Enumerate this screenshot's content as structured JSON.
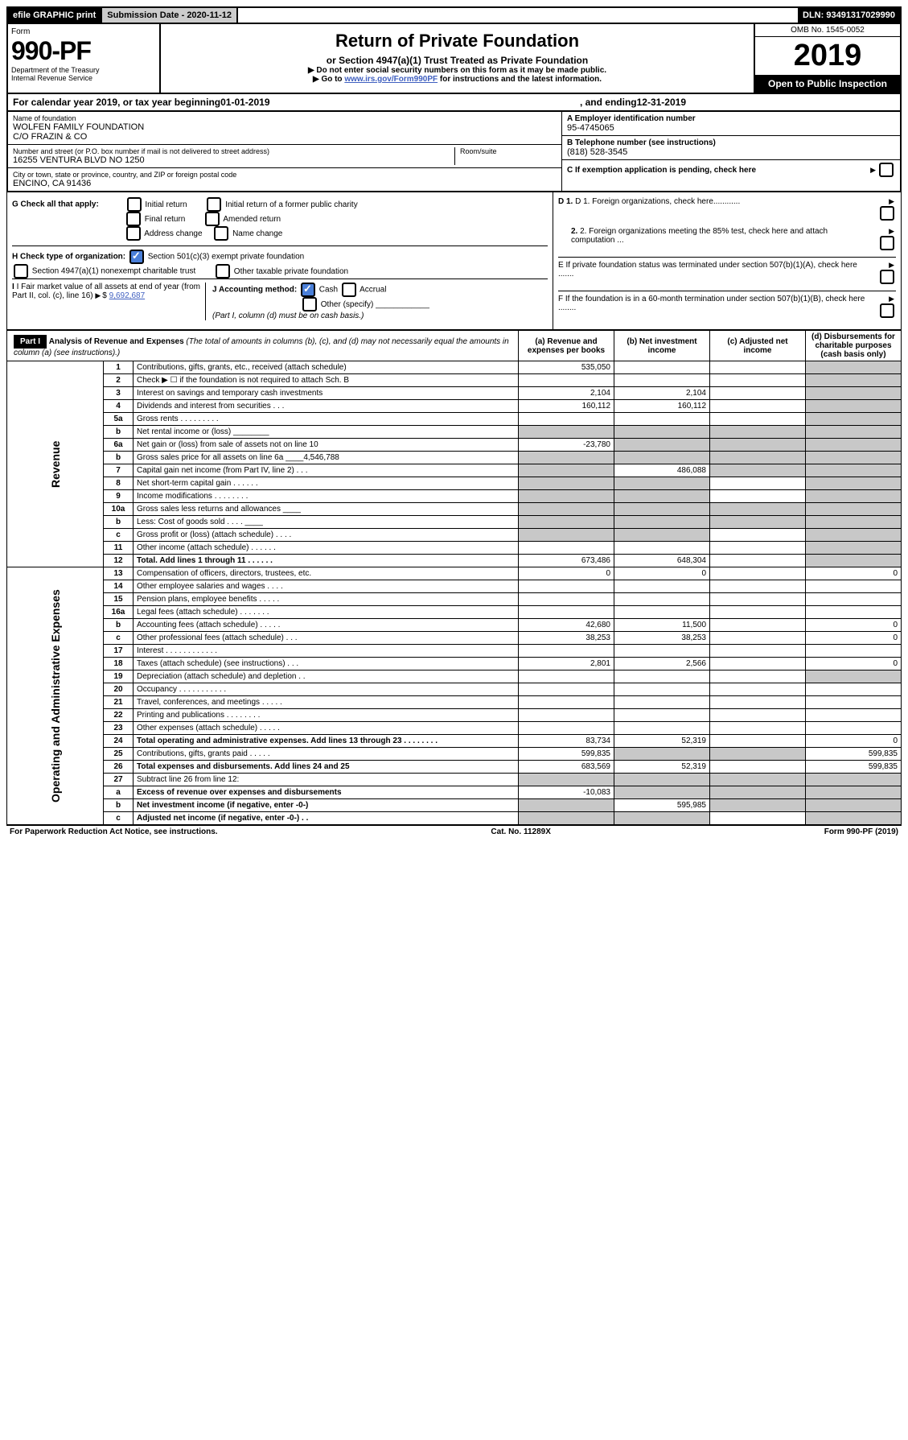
{
  "topbar": {
    "efile": "efile GRAPHIC print",
    "subdate_label": "Submission Date - 2020-11-12",
    "dln": "DLN: 93491317029990"
  },
  "header": {
    "form_label": "Form",
    "form_num": "990-PF",
    "dept": "Department of the Treasury\nInternal Revenue Service",
    "title": "Return of Private Foundation",
    "subtitle": "or Section 4947(a)(1) Trust Treated as Private Foundation",
    "note1": "▶ Do not enter social security numbers on this form as it may be made public.",
    "note2_pre": "▶ Go to ",
    "note2_link": "www.irs.gov/Form990PF",
    "note2_post": " for instructions and the latest information.",
    "omb": "OMB No. 1545-0052",
    "year": "2019",
    "open": "Open to Public Inspection"
  },
  "calyear": {
    "pre": "For calendar year 2019, or tax year beginning ",
    "begin": "01-01-2019",
    "mid": " , and ending ",
    "end": "12-31-2019"
  },
  "entity": {
    "name_lbl": "Name of foundation",
    "name": "WOLFEN FAMILY FOUNDATION\nC/O FRAZIN & CO",
    "addr_lbl": "Number and street (or P.O. box number if mail is not delivered to street address)",
    "addr": "16255 VENTURA BLVD NO 1250",
    "room_lbl": "Room/suite",
    "city_lbl": "City or town, state or province, country, and ZIP or foreign postal code",
    "city": "ENCINO, CA  91436",
    "ein_lbl": "A Employer identification number",
    "ein": "95-4745065",
    "tel_lbl": "B Telephone number (see instructions)",
    "tel": "(818) 528-3545",
    "c_lbl": "C If exemption application is pending, check here"
  },
  "g": {
    "label": "G Check all that apply:",
    "opts": [
      "Initial return",
      "Initial return of a former public charity",
      "Final return",
      "Amended return",
      "Address change",
      "Name change"
    ]
  },
  "h": {
    "label": "H Check type of organization:",
    "opt1": "Section 501(c)(3) exempt private foundation",
    "opt2": "Section 4947(a)(1) nonexempt charitable trust",
    "opt3": "Other taxable private foundation"
  },
  "i": {
    "label": "I Fair market value of all assets at end of year (from Part II, col. (c), line 16)",
    "val": "9,692,687"
  },
  "j": {
    "label": "J Accounting method:",
    "cash": "Cash",
    "accrual": "Accrual",
    "other": "Other (specify)",
    "note": "(Part I, column (d) must be on cash basis.)"
  },
  "right_items": {
    "d1": "D 1. Foreign organizations, check here............",
    "d2": "2. Foreign organizations meeting the 85% test, check here and attach computation ...",
    "e": "E  If private foundation status was terminated under section 507(b)(1)(A), check here .......",
    "f": "F  If the foundation is in a 60-month termination under section 507(b)(1)(B), check here ........"
  },
  "parti": {
    "label": "Part I",
    "title": "Analysis of Revenue and Expenses",
    "title_note": "(The total of amounts in columns (b), (c), and (d) may not necessarily equal the amounts in column (a) (see instructions).)",
    "cols": {
      "a": "(a) Revenue and expenses per books",
      "b": "(b) Net investment income",
      "c": "(c) Adjusted net income",
      "d": "(d) Disbursements for charitable purposes (cash basis only)"
    },
    "vlabels": {
      "rev": "Revenue",
      "exp": "Operating and Administrative Expenses"
    },
    "rows": [
      {
        "n": "1",
        "desc": "Contributions, gifts, grants, etc., received (attach schedule)",
        "a": "535,050",
        "d_shade": true
      },
      {
        "n": "2",
        "desc": "Check ▶ ☐ if the foundation is not required to attach Sch. B",
        "d_shade": true
      },
      {
        "n": "3",
        "desc": "Interest on savings and temporary cash investments",
        "a": "2,104",
        "b": "2,104",
        "d_shade": true
      },
      {
        "n": "4",
        "desc": "Dividends and interest from securities   .   .   .",
        "a": "160,112",
        "b": "160,112",
        "d_shade": true
      },
      {
        "n": "5a",
        "desc": "Gross rents   .   .   .   .   .   .   .   .   .",
        "d_shade": true
      },
      {
        "n": "b",
        "desc": "Net rental income or (loss) ________",
        "all_shade": true
      },
      {
        "n": "6a",
        "desc": "Net gain or (loss) from sale of assets not on line 10",
        "a": "-23,780",
        "bc_shade": true,
        "d_shade": true
      },
      {
        "n": "b",
        "desc": "Gross sales price for all assets on line 6a ____4,546,788",
        "all_shade": true
      },
      {
        "n": "7",
        "desc": "Capital gain net income (from Part IV, line 2)   .   .   .",
        "a_shade": true,
        "b": "486,088",
        "c_shade": true,
        "d_shade": true
      },
      {
        "n": "8",
        "desc": "Net short-term capital gain   .   .   .   .   .   .",
        "ab_shade": true,
        "d_shade": true
      },
      {
        "n": "9",
        "desc": "Income modifications   .   .   .   .   .   .   .   .",
        "ab_shade": true,
        "d_shade": true
      },
      {
        "n": "10a",
        "desc": "Gross sales less returns and allowances  ____",
        "all_shade": true
      },
      {
        "n": "b",
        "desc": "Less: Cost of goods sold   .   .   .   .   ____",
        "all_shade": true
      },
      {
        "n": "c",
        "desc": "Gross profit or (loss) (attach schedule)   .   .   .   .",
        "ab_shade": true,
        "d_shade": true
      },
      {
        "n": "11",
        "desc": "Other income (attach schedule)   .   .   .   .   .   .",
        "d_shade": true
      },
      {
        "n": "12",
        "desc": "Total. Add lines 1 through 11   .   .   .   .   .   .",
        "bold": true,
        "a": "673,486",
        "b": "648,304",
        "d_shade": true
      },
      {
        "n": "13",
        "desc": "Compensation of officers, directors, trustees, etc.",
        "a": "0",
        "b": "0",
        "d": "0"
      },
      {
        "n": "14",
        "desc": "Other employee salaries and wages   .   .   .   ."
      },
      {
        "n": "15",
        "desc": "Pension plans, employee benefits   .   .   .   .   ."
      },
      {
        "n": "16a",
        "desc": "Legal fees (attach schedule)   .   .   .   .   .   .   ."
      },
      {
        "n": "b",
        "desc": "Accounting fees (attach schedule)   .   .   .   .   .",
        "a": "42,680",
        "b": "11,500",
        "d": "0"
      },
      {
        "n": "c",
        "desc": "Other professional fees (attach schedule)   .   .   .",
        "a": "38,253",
        "b": "38,253",
        "d": "0"
      },
      {
        "n": "17",
        "desc": "Interest   .   .   .   .   .   .   .   .   .   .   .   ."
      },
      {
        "n": "18",
        "desc": "Taxes (attach schedule) (see instructions)   .   .   .",
        "a": "2,801",
        "b": "2,566",
        "d": "0"
      },
      {
        "n": "19",
        "desc": "Depreciation (attach schedule) and depletion   .   .",
        "d_shade": true
      },
      {
        "n": "20",
        "desc": "Occupancy   .   .   .   .   .   .   .   .   .   .   ."
      },
      {
        "n": "21",
        "desc": "Travel, conferences, and meetings   .   .   .   .   ."
      },
      {
        "n": "22",
        "desc": "Printing and publications   .   .   .   .   .   .   .   ."
      },
      {
        "n": "23",
        "desc": "Other expenses (attach schedule)   .   .   .   .   ."
      },
      {
        "n": "24",
        "desc": "Total operating and administrative expenses. Add lines 13 through 23   .   .   .   .   .   .   .   .",
        "bold": true,
        "a": "83,734",
        "b": "52,319",
        "d": "0"
      },
      {
        "n": "25",
        "desc": "Contributions, gifts, grants paid   .   .   .   .   .",
        "a": "599,835",
        "bc_shade": true,
        "d": "599,835"
      },
      {
        "n": "26",
        "desc": "Total expenses and disbursements. Add lines 24 and 25",
        "bold": true,
        "a": "683,569",
        "b": "52,319",
        "d": "599,835"
      },
      {
        "n": "27",
        "desc": "Subtract line 26 from line 12:",
        "all_shade": true
      },
      {
        "n": "a",
        "desc": "Excess of revenue over expenses and disbursements",
        "bold": true,
        "a": "-10,083",
        "bcd_shade": true
      },
      {
        "n": "b",
        "desc": "Net investment income (if negative, enter -0-)",
        "bold": true,
        "a_shade": true,
        "b": "595,985",
        "cd_shade": true
      },
      {
        "n": "c",
        "desc": "Adjusted net income (if negative, enter -0-)   .   .",
        "bold": true,
        "ab_shade": true,
        "d_shade": true
      }
    ]
  },
  "footer": {
    "left": "For Paperwork Reduction Act Notice, see instructions.",
    "mid": "Cat. No. 11289X",
    "right": "Form 990-PF (2019)"
  }
}
